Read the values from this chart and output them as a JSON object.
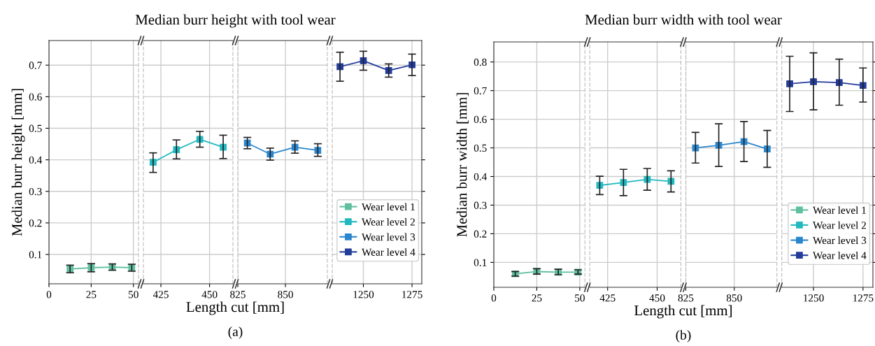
{
  "chart_data": [
    {
      "type": "line",
      "title": "Median burr height with tool wear",
      "xlabel": "Length cut [mm]",
      "ylabel": "Median burr height [mm]",
      "annotations": [
        "(a)"
      ],
      "x": [
        12.5,
        25,
        37.5,
        49
      ],
      "xlim": [
        0,
        53
      ],
      "xticks": [
        0,
        25,
        50
      ],
      "ylim": [
        0.007,
        0.778
      ],
      "yticks": [
        0.1,
        0.2,
        0.3,
        0.4,
        0.5,
        0.6,
        0.7
      ],
      "grid": true,
      "marker": "square",
      "series": [
        {
          "name": "Wear level 1",
          "color": "#5fbfa0",
          "values": [
            0.054,
            0.058,
            0.06,
            0.058
          ],
          "errors": [
            [
              0.042,
              0.066
            ],
            [
              0.045,
              0.071
            ],
            [
              0.05,
              0.07
            ],
            [
              0.047,
              0.069
            ]
          ]
        }
      ]
    },
    {
      "type": "line",
      "x": [
        421,
        433,
        445,
        457
      ],
      "xlim": [
        416,
        462
      ],
      "xticks": [
        425,
        450
      ],
      "ylim": [
        0.007,
        0.778
      ],
      "yticks": [
        0.1,
        0.2,
        0.3,
        0.4,
        0.5,
        0.6,
        0.7
      ],
      "grid": true,
      "marker": "square",
      "tick_labels": "x",
      "series": [
        {
          "name": "Wear level 2",
          "color": "#22b8bf",
          "values": [
            0.392,
            0.432,
            0.465,
            0.44
          ],
          "errors": [
            [
              0.36,
              0.422
            ],
            [
              0.403,
              0.463
            ],
            [
              0.44,
              0.49
            ],
            [
              0.404,
              0.478
            ]
          ]
        }
      ]
    },
    {
      "type": "line",
      "x": [
        830,
        842,
        855,
        867
      ],
      "xlim": [
        825,
        872
      ],
      "xticks": [
        825,
        850
      ],
      "ylim": [
        0.007,
        0.778
      ],
      "yticks": [
        0.1,
        0.2,
        0.3,
        0.4,
        0.5,
        0.6,
        0.7
      ],
      "grid": true,
      "marker": "square",
      "tick_labels": "x",
      "series": [
        {
          "name": "Wear level 3",
          "color": "#2a86cc",
          "values": [
            0.453,
            0.418,
            0.44,
            0.43
          ],
          "errors": [
            [
              0.435,
              0.471
            ],
            [
              0.399,
              0.437
            ],
            [
              0.421,
              0.46
            ],
            [
              0.411,
              0.451
            ]
          ]
        }
      ]
    },
    {
      "type": "line",
      "x": [
        1238,
        1250,
        1263,
        1275
      ],
      "xlim": [
        1234,
        1280
      ],
      "xticks": [
        1250,
        1275
      ],
      "ylim": [
        0.007,
        0.778
      ],
      "yticks": [
        0.1,
        0.2,
        0.3,
        0.4,
        0.5,
        0.6,
        0.7
      ],
      "grid": true,
      "marker": "square",
      "tick_labels": "x",
      "legend": "bottom right",
      "series": [
        {
          "name": "Wear level 4",
          "color": "#233c9a",
          "values": [
            0.695,
            0.714,
            0.683,
            0.701
          ],
          "errors": [
            [
              0.649,
              0.741
            ],
            [
              0.684,
              0.744
            ],
            [
              0.662,
              0.704
            ],
            [
              0.667,
              0.735
            ]
          ]
        }
      ]
    },
    {
      "type": "line",
      "title": "Median burr width with tool wear",
      "xlabel": "Length cut [mm]",
      "ylabel": "Median burr width [mm]",
      "annotations": [
        "(b)"
      ],
      "x": [
        12.5,
        25,
        37.5,
        49
      ],
      "xlim": [
        0,
        53
      ],
      "xticks": [
        0,
        25,
        50
      ],
      "ylim": [
        0.013,
        0.87
      ],
      "yticks": [
        0.1,
        0.2,
        0.3,
        0.4,
        0.5,
        0.6,
        0.7,
        0.8
      ],
      "grid": true,
      "marker": "square",
      "series": [
        {
          "name": "Wear level 1",
          "color": "#5fbfa0",
          "values": [
            0.06,
            0.068,
            0.066,
            0.066
          ],
          "errors": [
            [
              0.052,
              0.068
            ],
            [
              0.059,
              0.078
            ],
            [
              0.057,
              0.076
            ],
            [
              0.059,
              0.074
            ]
          ]
        }
      ]
    },
    {
      "type": "line",
      "x": [
        421,
        433,
        445,
        457
      ],
      "xlim": [
        416,
        462
      ],
      "xticks": [
        425,
        450
      ],
      "ylim": [
        0.013,
        0.87
      ],
      "yticks": [
        0.1,
        0.2,
        0.3,
        0.4,
        0.5,
        0.6,
        0.7,
        0.8
      ],
      "grid": true,
      "marker": "square",
      "tick_labels": "x",
      "series": [
        {
          "name": "Wear level 2",
          "color": "#22b8bf",
          "values": [
            0.369,
            0.379,
            0.39,
            0.383
          ],
          "errors": [
            [
              0.337,
              0.401
            ],
            [
              0.333,
              0.425
            ],
            [
              0.352,
              0.428
            ],
            [
              0.346,
              0.42
            ]
          ]
        }
      ]
    },
    {
      "type": "line",
      "x": [
        830,
        842,
        855,
        867
      ],
      "xlim": [
        825,
        872
      ],
      "xticks": [
        825,
        850
      ],
      "ylim": [
        0.013,
        0.87
      ],
      "yticks": [
        0.1,
        0.2,
        0.3,
        0.4,
        0.5,
        0.6,
        0.7,
        0.8
      ],
      "grid": true,
      "marker": "square",
      "tick_labels": "x",
      "series": [
        {
          "name": "Wear level 3",
          "color": "#2a86cc",
          "values": [
            0.5,
            0.509,
            0.522,
            0.496
          ],
          "errors": [
            [
              0.447,
              0.554
            ],
            [
              0.435,
              0.584
            ],
            [
              0.452,
              0.592
            ],
            [
              0.432,
              0.561
            ]
          ]
        }
      ]
    },
    {
      "type": "line",
      "x": [
        1238,
        1250,
        1263,
        1275
      ],
      "xlim": [
        1234,
        1280
      ],
      "xticks": [
        1250,
        1275
      ],
      "ylim": [
        0.013,
        0.87
      ],
      "yticks": [
        0.1,
        0.2,
        0.3,
        0.4,
        0.5,
        0.6,
        0.7,
        0.8
      ],
      "grid": true,
      "marker": "square",
      "tick_labels": "x",
      "legend": "bottom right",
      "series": [
        {
          "name": "Wear level 4",
          "color": "#233c9a",
          "values": [
            0.724,
            0.731,
            0.728,
            0.718
          ],
          "errors": [
            [
              0.627,
              0.82
            ],
            [
              0.633,
              0.832
            ],
            [
              0.649,
              0.81
            ],
            [
              0.66,
              0.779
            ]
          ]
        }
      ]
    }
  ]
}
